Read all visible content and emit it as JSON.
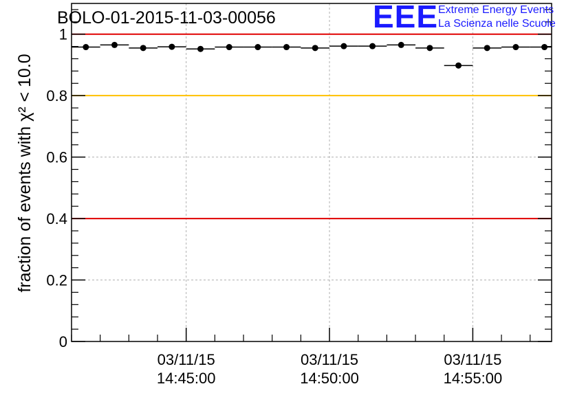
{
  "chart_data": {
    "type": "scatter",
    "title": "BOLO-01-2015-11-03-00056",
    "ylabel": "fraction of events with χ² < 10.0",
    "ylim": [
      0,
      1.1
    ],
    "yticks": [
      "0",
      "0.2",
      "0.4",
      "0.6",
      "0.8",
      "1"
    ],
    "xtime_range": [
      "14:41:00",
      "14:57:45"
    ],
    "xticks": [
      {
        "date": "03/11/15",
        "time": "14:45:00"
      },
      {
        "date": "03/11/15",
        "time": "14:50:00"
      },
      {
        "date": "03/11/15",
        "time": "14:55:00"
      }
    ],
    "grid": true,
    "reference_lines": [
      {
        "y": 1.0,
        "color": "#e00000"
      },
      {
        "y": 0.8,
        "color": "#ffc000"
      },
      {
        "y": 0.4,
        "color": "#e00000"
      }
    ],
    "series": [
      {
        "color": "#000000",
        "points": [
          {
            "start": "14:41:00",
            "end": "14:42:00",
            "y": 0.958
          },
          {
            "start": "14:42:00",
            "end": "14:43:00",
            "y": 0.965
          },
          {
            "start": "14:43:00",
            "end": "14:44:00",
            "y": 0.955
          },
          {
            "start": "14:44:00",
            "end": "14:45:00",
            "y": 0.959
          },
          {
            "start": "14:45:00",
            "end": "14:46:00",
            "y": 0.952
          },
          {
            "start": "14:46:00",
            "end": "14:47:00",
            "y": 0.958
          },
          {
            "start": "14:47:00",
            "end": "14:48:00",
            "y": 0.958
          },
          {
            "start": "14:48:00",
            "end": "14:49:00",
            "y": 0.958
          },
          {
            "start": "14:49:00",
            "end": "14:50:00",
            "y": 0.955
          },
          {
            "start": "14:50:00",
            "end": "14:51:00",
            "y": 0.961
          },
          {
            "start": "14:51:00",
            "end": "14:52:00",
            "y": 0.961
          },
          {
            "start": "14:52:00",
            "end": "14:53:00",
            "y": 0.965
          },
          {
            "start": "14:53:00",
            "end": "14:54:00",
            "y": 0.955
          },
          {
            "start": "14:54:00",
            "end": "14:55:00",
            "y": 0.898
          },
          {
            "start": "14:55:00",
            "end": "14:56:00",
            "y": 0.955
          },
          {
            "start": "14:56:00",
            "end": "14:57:00",
            "y": 0.958
          },
          {
            "start": "14:57:00",
            "end": "14:58:00",
            "y": 0.958
          }
        ]
      }
    ]
  },
  "logo": {
    "mark": "EEE",
    "line1": "Extreme Energy Events",
    "line2": "La Scienza nelle Scuole",
    "color": "#1a1aff"
  }
}
